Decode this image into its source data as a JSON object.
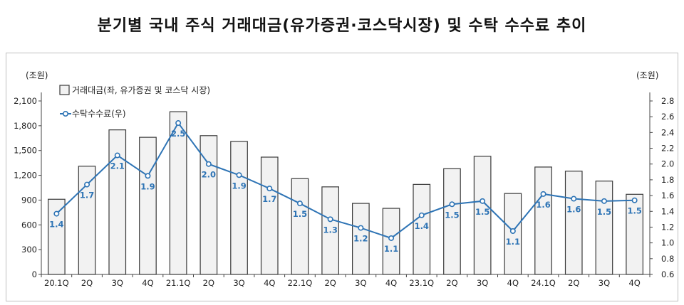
{
  "title": "분기별 국내 주식 거래대금(유가증권·코스닥시장) 및 수탁 수수료 추이",
  "colors": {
    "bar_fill": "#f2f2f2",
    "bar_stroke": "#3a3a3a",
    "line": "#2e74b5",
    "label": "#2e74b5"
  },
  "chart_data": {
    "type": "bar",
    "categories": [
      "20.1Q",
      "2Q",
      "3Q",
      "4Q",
      "21.1Q",
      "2Q",
      "3Q",
      "4Q",
      "22.1Q",
      "2Q",
      "3Q",
      "4Q",
      "23.1Q",
      "2Q",
      "3Q",
      "4Q",
      "24.1Q",
      "2Q",
      "3Q",
      "4Q"
    ],
    "left_unit": "(조원)",
    "right_unit": "(조원)",
    "left_ticks": [
      "0",
      "300",
      "600",
      "900",
      "1,200",
      "1,500",
      "1,800",
      "2,100"
    ],
    "right_ticks": [
      "0.6",
      "0.8",
      "1.0",
      "1.2",
      "1.4",
      "1.6",
      "1.8",
      "2.0",
      "2.2",
      "2.4",
      "2.6",
      "2.8"
    ],
    "ylim_left": [
      0,
      2100
    ],
    "ylim_right": [
      0.6,
      2.8
    ],
    "series": [
      {
        "name": "거래대금(좌, 유가증권 및 코스닥 시장)",
        "kind": "bar",
        "axis": "left",
        "values": [
          910,
          1310,
          1750,
          1660,
          1970,
          1680,
          1610,
          1420,
          1160,
          1060,
          860,
          800,
          1090,
          1280,
          1430,
          980,
          1300,
          1250,
          1130,
          970
        ]
      },
      {
        "name": "수탁수수료(우)",
        "kind": "line",
        "axis": "right",
        "values": [
          1.37,
          1.74,
          2.11,
          1.85,
          2.52,
          2.0,
          1.86,
          1.69,
          1.5,
          1.3,
          1.19,
          1.06,
          1.35,
          1.49,
          1.53,
          1.15,
          1.62,
          1.56,
          1.53,
          1.54
        ],
        "labels": [
          "1.4",
          "1.7",
          "2.1",
          "1.9",
          "2.5",
          "2.0",
          "1.9",
          "1.7",
          "1.5",
          "1.3",
          "1.2",
          "1.1",
          "1.4",
          "1.5",
          "1.5",
          "1.1",
          "1.6",
          "1.6",
          "1.5",
          "1.5"
        ]
      }
    ],
    "legend": [
      "거래대금(좌, 유가증권 및 코스닥 시장)",
      "수탁수수료(우)"
    ],
    "legend_position": "top-left",
    "grid": false
  }
}
